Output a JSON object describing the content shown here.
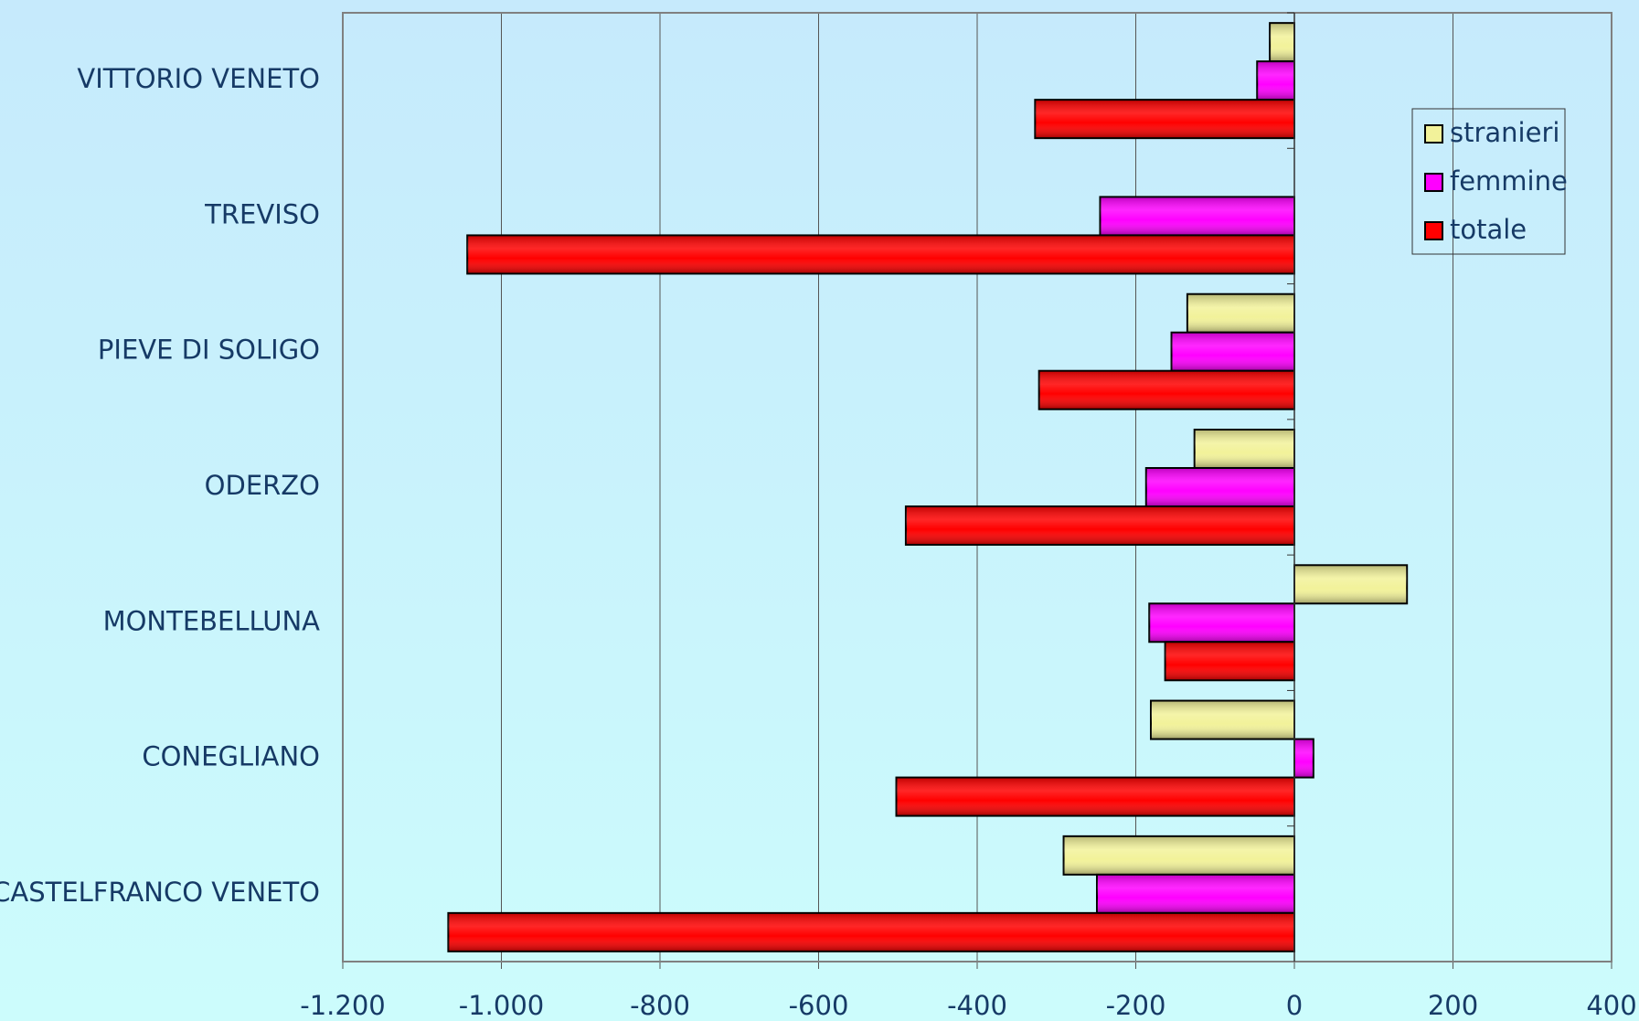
{
  "chart_data": {
    "type": "barh",
    "categories": [
      "VITTORIO VENETO",
      "TREVISO",
      "PIEVE DI SOLIGO",
      "ODERZO",
      "MONTEBELLUNA",
      "CONEGLIANO",
      "CASTELFRANCO VENETO"
    ],
    "series": [
      {
        "name": "stranieri",
        "color": "#f2f29a",
        "values": [
          -31,
          null,
          -135,
          -126,
          142,
          -181,
          -291
        ]
      },
      {
        "name": "femmine",
        "color": "#ff00ff",
        "values": [
          -47,
          -245,
          -155,
          -187,
          -183,
          24,
          -249
        ]
      },
      {
        "name": "totale",
        "color": "#ff0000",
        "values": [
          -327,
          -1043,
          -322,
          -490,
          -163,
          -502,
          -1067
        ]
      }
    ],
    "xlim": [
      -1200,
      400
    ],
    "xticks": [
      {
        "value": -1200,
        "label": "-1.200"
      },
      {
        "value": -1000,
        "label": "-1.000"
      },
      -800,
      -600,
      -400,
      -200,
      0,
      200,
      400
    ],
    "grid": true,
    "legend": "upper right"
  }
}
